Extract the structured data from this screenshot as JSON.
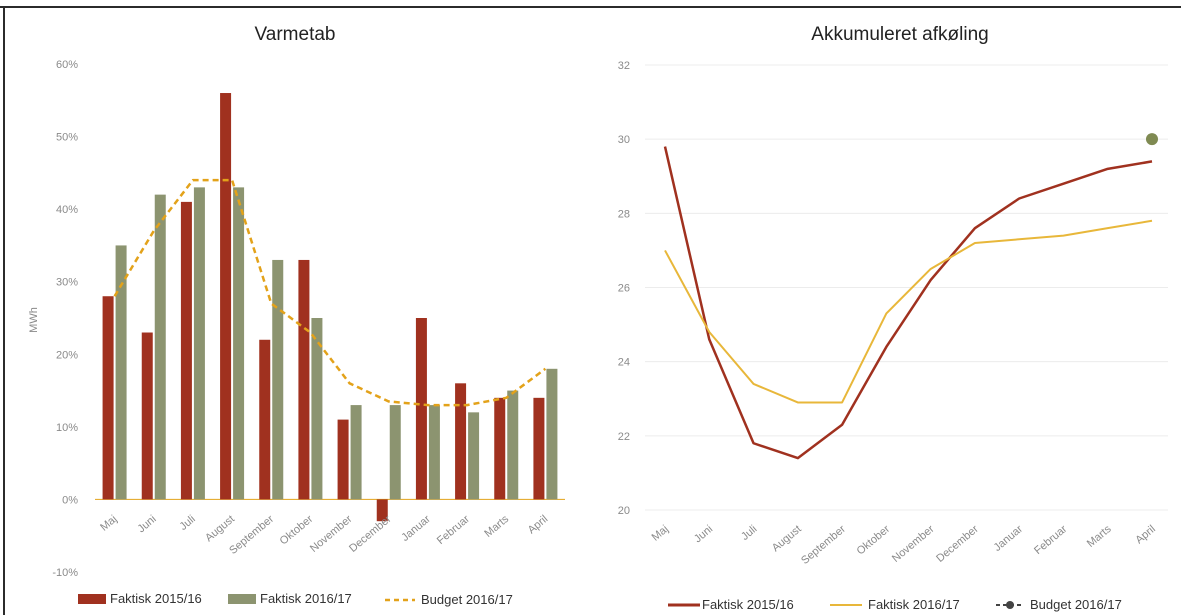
{
  "chart_data": [
    {
      "type": "bar",
      "title": "Varmetab",
      "ylabel": "MWh",
      "xlabel": "",
      "ylim": [
        -10,
        60
      ],
      "y_ticks": [
        "60%",
        "50%",
        "40%",
        "30%",
        "20%",
        "10%",
        "0%",
        "-10%"
      ],
      "y_tick_values": [
        60,
        50,
        40,
        30,
        20,
        10,
        0,
        -10
      ],
      "grid": false,
      "legend_position": "bottom",
      "categories": [
        "Maj",
        "Juni",
        "Juli",
        "August",
        "September",
        "Oktober",
        "November",
        "December",
        "Januar",
        "Februar",
        "Marts",
        "April"
      ],
      "series": [
        {
          "name": "Faktisk 2015/16",
          "kind": "bar",
          "color": "#a0311f",
          "values": [
            28,
            23,
            41,
            56,
            22,
            33,
            11,
            -3,
            25,
            16,
            14,
            14
          ]
        },
        {
          "name": "Faktisk 2016/17",
          "kind": "bar",
          "color": "#8c9470",
          "values": [
            35,
            42,
            43,
            43,
            33,
            25,
            13,
            13,
            13,
            12,
            15,
            18
          ]
        },
        {
          "name": "Budget 2016/17",
          "kind": "line-dashed",
          "color": "#e3a21a",
          "values": [
            28,
            37,
            44,
            44,
            27,
            23,
            16,
            13.5,
            13,
            13,
            14,
            18
          ]
        }
      ]
    },
    {
      "type": "line",
      "title": "Akkumuleret afkøling",
      "xlabel": "",
      "ylabel": "",
      "ylim": [
        20,
        32
      ],
      "y_ticks": [
        "32",
        "30",
        "28",
        "26",
        "24",
        "22",
        "20"
      ],
      "y_tick_values": [
        32,
        30,
        28,
        26,
        24,
        22,
        20
      ],
      "grid": true,
      "legend_position": "bottom",
      "categories": [
        "Maj",
        "Juni",
        "Juli",
        "August",
        "September",
        "Oktober",
        "November",
        "December",
        "Januar",
        "Februar",
        "Marts",
        "April"
      ],
      "series": [
        {
          "name": "Faktisk 2015/16",
          "kind": "line",
          "color": "#a0311f",
          "values": [
            29.8,
            24.6,
            21.8,
            21.4,
            22.3,
            24.4,
            26.2,
            27.6,
            28.4,
            28.8,
            29.2,
            29.4
          ]
        },
        {
          "name": "Faktisk 2016/17",
          "kind": "line",
          "color": "#e8b73a",
          "values": [
            27.0,
            24.8,
            23.4,
            22.9,
            22.9,
            25.3,
            26.5,
            27.2,
            27.3,
            27.4,
            27.6,
            27.8
          ]
        },
        {
          "name": "Budget 2016/17",
          "kind": "marker",
          "color": "#7f8a52",
          "values": [
            null,
            null,
            null,
            null,
            null,
            null,
            null,
            null,
            null,
            null,
            null,
            30.0
          ]
        }
      ]
    }
  ]
}
